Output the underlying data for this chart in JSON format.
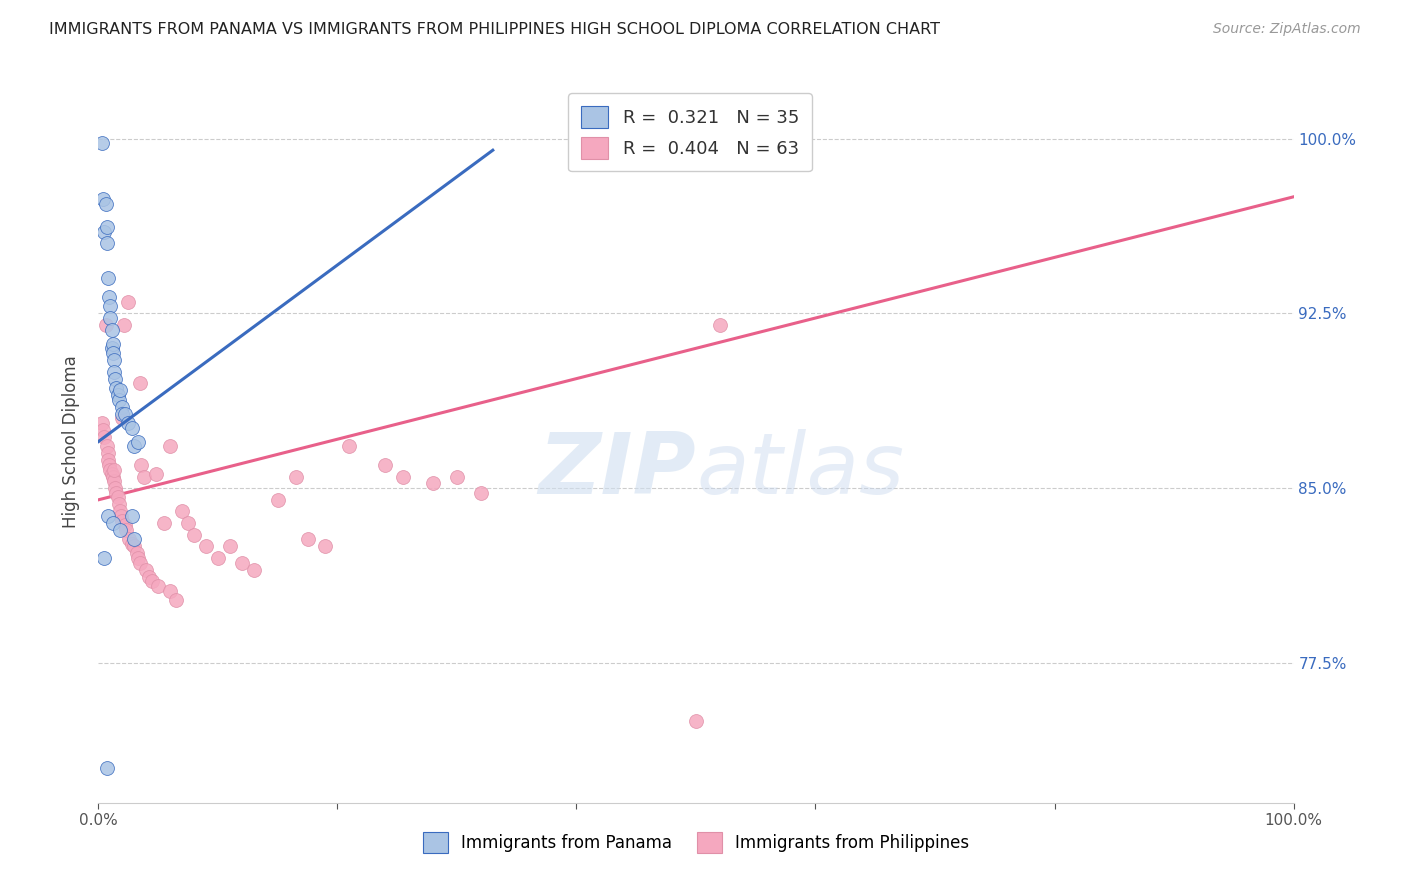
{
  "title": "IMMIGRANTS FROM PANAMA VS IMMIGRANTS FROM PHILIPPINES HIGH SCHOOL DIPLOMA CORRELATION CHART",
  "source": "Source: ZipAtlas.com",
  "ylabel": "High School Diploma",
  "ytick_labels": [
    "77.5%",
    "85.0%",
    "92.5%",
    "100.0%"
  ],
  "ytick_values": [
    0.775,
    0.85,
    0.925,
    1.0
  ],
  "xmin": 0.0,
  "xmax": 1.0,
  "ymin": 0.715,
  "ymax": 1.025,
  "color_panama": "#aac4e4",
  "color_phil": "#f5a8bf",
  "color_panama_line": "#3a6bbf",
  "color_phil_line": "#e8608a",
  "color_rtick": "#3a6bbf",
  "watermark_color": "#d0dff0",
  "panama_line_x0": 0.0,
  "panama_line_y0": 0.87,
  "panama_line_x1": 0.33,
  "panama_line_y1": 0.995,
  "phil_line_x0": 0.0,
  "phil_line_y0": 0.845,
  "phil_line_x1": 1.0,
  "phil_line_y1": 0.975,
  "panama_pts_x": [
    0.003,
    0.004,
    0.005,
    0.006,
    0.007,
    0.007,
    0.008,
    0.009,
    0.01,
    0.01,
    0.011,
    0.011,
    0.012,
    0.012,
    0.013,
    0.013,
    0.014,
    0.015,
    0.016,
    0.017,
    0.018,
    0.02,
    0.02,
    0.022,
    0.025,
    0.028,
    0.03,
    0.033,
    0.005,
    0.008,
    0.012,
    0.018,
    0.028,
    0.03,
    0.007
  ],
  "panama_pts_y": [
    0.998,
    0.974,
    0.96,
    0.972,
    0.955,
    0.962,
    0.94,
    0.932,
    0.928,
    0.923,
    0.918,
    0.91,
    0.912,
    0.908,
    0.905,
    0.9,
    0.897,
    0.893,
    0.89,
    0.888,
    0.892,
    0.885,
    0.882,
    0.882,
    0.878,
    0.876,
    0.868,
    0.87,
    0.82,
    0.838,
    0.835,
    0.832,
    0.838,
    0.828,
    0.73
  ],
  "phil_pts_x": [
    0.003,
    0.004,
    0.005,
    0.006,
    0.007,
    0.008,
    0.008,
    0.009,
    0.01,
    0.011,
    0.012,
    0.013,
    0.013,
    0.014,
    0.015,
    0.016,
    0.017,
    0.018,
    0.019,
    0.02,
    0.021,
    0.022,
    0.023,
    0.025,
    0.026,
    0.028,
    0.03,
    0.032,
    0.033,
    0.035,
    0.036,
    0.038,
    0.04,
    0.042,
    0.045,
    0.048,
    0.05,
    0.055,
    0.06,
    0.065,
    0.07,
    0.075,
    0.08,
    0.09,
    0.1,
    0.11,
    0.12,
    0.13,
    0.15,
    0.165,
    0.175,
    0.19,
    0.21,
    0.24,
    0.255,
    0.28,
    0.3,
    0.32,
    0.5,
    0.52,
    0.02,
    0.035,
    0.06
  ],
  "phil_pts_y": [
    0.878,
    0.875,
    0.872,
    0.92,
    0.868,
    0.865,
    0.862,
    0.86,
    0.858,
    0.856,
    0.855,
    0.853,
    0.858,
    0.85,
    0.848,
    0.846,
    0.843,
    0.84,
    0.838,
    0.836,
    0.92,
    0.834,
    0.832,
    0.93,
    0.828,
    0.826,
    0.825,
    0.822,
    0.82,
    0.818,
    0.86,
    0.855,
    0.815,
    0.812,
    0.81,
    0.856,
    0.808,
    0.835,
    0.806,
    0.802,
    0.84,
    0.835,
    0.83,
    0.825,
    0.82,
    0.825,
    0.818,
    0.815,
    0.845,
    0.855,
    0.828,
    0.825,
    0.868,
    0.86,
    0.855,
    0.852,
    0.855,
    0.848,
    0.75,
    0.92,
    0.88,
    0.895,
    0.868
  ]
}
